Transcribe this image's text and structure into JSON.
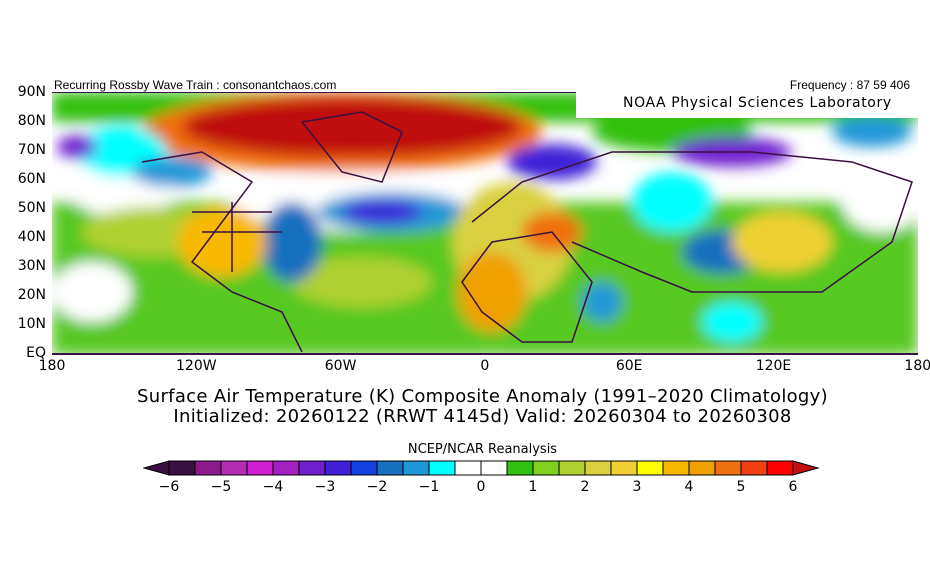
{
  "header": {
    "left": "Recurring Rossby Wave Train : consonantchaos.com",
    "right": "Frequency : 87 59 406",
    "lab": "NOAA Physical Sciences Laboratory"
  },
  "lat_labels": [
    "90N",
    "80N",
    "70N",
    "60N",
    "50N",
    "40N",
    "30N",
    "20N",
    "10N",
    "EQ"
  ],
  "lon_labels": [
    "180",
    "120W",
    "60W",
    "0",
    "60E",
    "120E",
    "180"
  ],
  "title": {
    "line1": "Surface Air Temperature (K) Composite Anomaly (1991–2020 Climatology)",
    "line2": "Initialized: 20260122 (RRWT 4145d) Valid: 20260304 to 20260308"
  },
  "colorbar": {
    "source": "NCEP/NCAR Reanalysis",
    "ticks": [
      "-6",
      "-5",
      "-4",
      "-3",
      "-2",
      "-1",
      "0",
      "1",
      "2",
      "3",
      "4",
      "5",
      "6"
    ],
    "colors": [
      "#3a1040",
      "#8b1a8b",
      "#b42cb4",
      "#d21ed2",
      "#a020c0",
      "#7020d0",
      "#4020d8",
      "#1040e0",
      "#1870c0",
      "#2098d8",
      "#00ffff",
      "#ffffff",
      "#ffffff",
      "#30c010",
      "#80d020",
      "#b0d030",
      "#d8d040",
      "#f0d030",
      "#ffff00",
      "#f8b800",
      "#f0a000",
      "#f07010",
      "#f04010",
      "#ff0000"
    ],
    "under": "#3a1040",
    "over": "#c01010"
  }
}
